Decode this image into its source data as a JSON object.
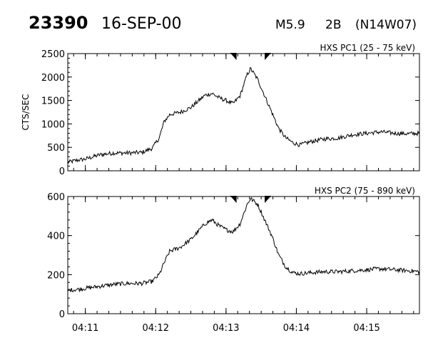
{
  "header": {
    "event_id": "23390",
    "date": "16-SEP-00",
    "flare_class": "M5.9",
    "optical_class": "2B",
    "location": "(N14W07)"
  },
  "colors": {
    "line": "#000000",
    "background": "#ffffff"
  },
  "chart_data": [
    {
      "type": "line",
      "title": "HXS PC1 (25 - 75 keV)",
      "ylabel": "CTS/SEC",
      "xlabel": "",
      "xlim": [
        10.75,
        15.75
      ],
      "ylim": [
        0,
        2500
      ],
      "yticks": [
        0,
        500,
        1000,
        1500,
        2000,
        2500
      ],
      "xtick_labels": [
        "04:11",
        "04:12",
        "04:13",
        "04:14",
        "04:15"
      ],
      "xtick_values": [
        11,
        12,
        13,
        14,
        15
      ],
      "markers": [
        13.15,
        13.55
      ],
      "x": [
        10.75,
        10.9,
        11.0,
        11.2,
        11.4,
        11.6,
        11.8,
        11.95,
        12.05,
        12.12,
        12.2,
        12.35,
        12.5,
        12.6,
        12.7,
        12.8,
        12.9,
        13.0,
        13.1,
        13.2,
        13.3,
        13.35,
        13.45,
        13.55,
        13.65,
        13.75,
        13.85,
        13.95,
        14.05,
        14.2,
        14.4,
        14.6,
        14.8,
        15.0,
        15.2,
        15.4,
        15.6,
        15.75
      ],
      "y": [
        180,
        230,
        250,
        340,
        380,
        380,
        390,
        480,
        700,
        1050,
        1200,
        1250,
        1350,
        1480,
        1610,
        1650,
        1560,
        1500,
        1430,
        1600,
        2050,
        2180,
        1950,
        1600,
        1250,
        900,
        700,
        600,
        550,
        620,
        680,
        700,
        770,
        800,
        830,
        800,
        790,
        800
      ]
    },
    {
      "type": "line",
      "title": "HXS PC2 (75 - 890 keV)",
      "ylabel": "",
      "xlabel": "",
      "xlim": [
        10.75,
        15.75
      ],
      "ylim": [
        0,
        600
      ],
      "yticks": [
        0,
        200,
        400,
        600
      ],
      "xtick_labels": [
        "04:11",
        "04:12",
        "04:13",
        "04:14",
        "04:15"
      ],
      "xtick_values": [
        11,
        12,
        13,
        14,
        15
      ],
      "markers": [
        13.15,
        13.55
      ],
      "x": [
        10.75,
        10.9,
        11.0,
        11.2,
        11.4,
        11.6,
        11.8,
        11.95,
        12.05,
        12.12,
        12.2,
        12.35,
        12.5,
        12.6,
        12.7,
        12.8,
        12.9,
        13.0,
        13.1,
        13.2,
        13.3,
        13.35,
        13.45,
        13.55,
        13.65,
        13.75,
        13.85,
        13.95,
        14.05,
        14.2,
        14.4,
        14.6,
        14.8,
        15.0,
        15.2,
        15.4,
        15.6,
        15.75
      ],
      "y": [
        120,
        125,
        130,
        140,
        150,
        155,
        155,
        165,
        200,
        260,
        320,
        340,
        380,
        420,
        460,
        480,
        450,
        430,
        420,
        460,
        560,
        590,
        560,
        480,
        400,
        300,
        240,
        210,
        205,
        210,
        215,
        215,
        220,
        225,
        230,
        225,
        220,
        215
      ]
    }
  ]
}
